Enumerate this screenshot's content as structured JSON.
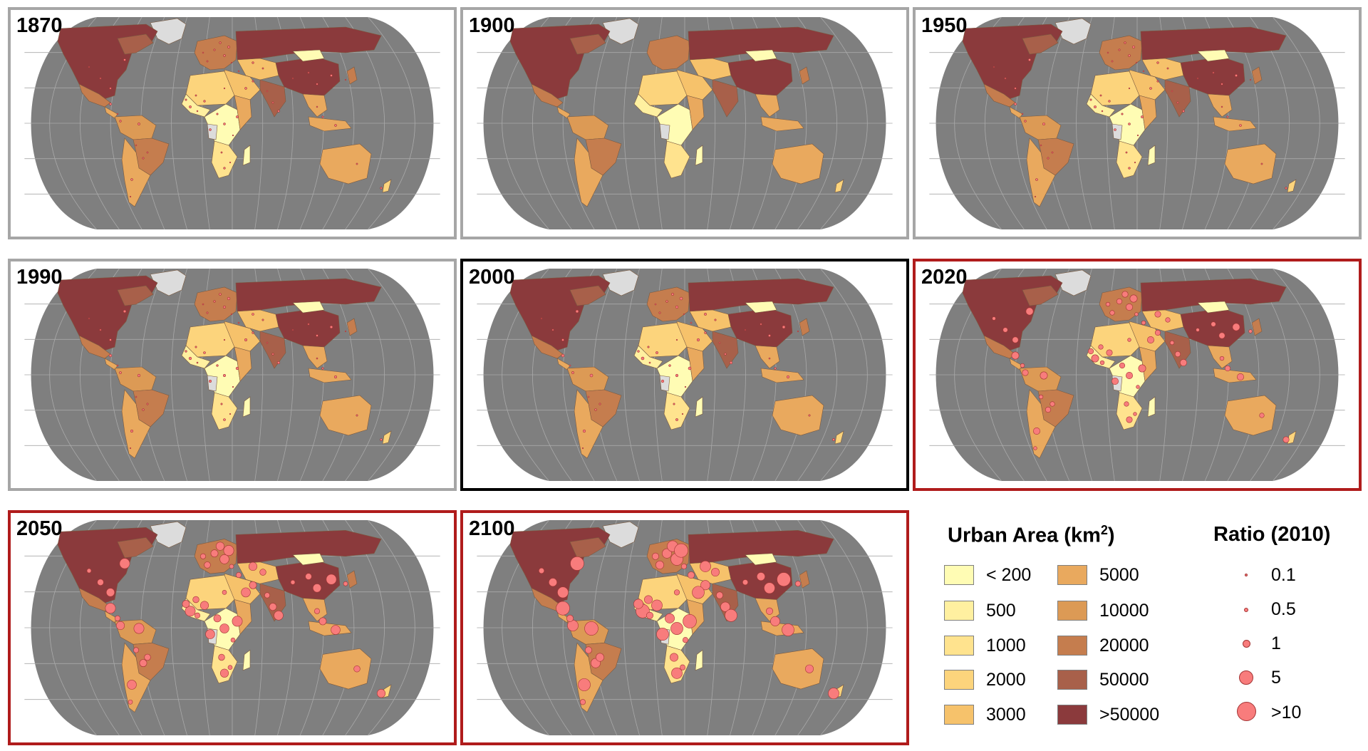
{
  "panels": [
    {
      "year": "1870",
      "frame": "gray",
      "circle_scale": 0.25
    },
    {
      "year": "1900",
      "frame": "gray",
      "circle_scale": 0.0
    },
    {
      "year": "1950",
      "frame": "gray",
      "circle_scale": 0.3
    },
    {
      "year": "1990",
      "frame": "gray",
      "circle_scale": 0.45
    },
    {
      "year": "2000",
      "frame": "black",
      "circle_scale": 0.55
    },
    {
      "year": "2020",
      "frame": "red",
      "circle_scale": 1.0
    },
    {
      "year": "2050",
      "frame": "red",
      "circle_scale": 1.5
    },
    {
      "year": "2100",
      "frame": "red",
      "circle_scale": 2.1
    }
  ],
  "legend": {
    "urban_area_title": "Urban Area (km",
    "urban_area_title_sup": "2",
    "urban_area_title_end": ")",
    "urban_classes": [
      {
        "label": "< 200",
        "color": "#fffcb4"
      },
      {
        "label": "500",
        "color": "#fff0a0"
      },
      {
        "label": "1000",
        "color": "#ffe38e"
      },
      {
        "label": "2000",
        "color": "#fcd47c"
      },
      {
        "label": "3000",
        "color": "#f6c26b"
      },
      {
        "label": "5000",
        "color": "#e9a95e"
      },
      {
        "label": "10000",
        "color": "#dc9a55"
      },
      {
        "label": "20000",
        "color": "#c57d4e"
      },
      {
        "label": "50000",
        "color": "#a8604a"
      },
      {
        "label": ">50000",
        "color": "#8b3a3c"
      }
    ],
    "ratio_title": "Ratio (2010)",
    "ratio_classes": [
      {
        "label": "0.1",
        "size": 4
      },
      {
        "label": "0.5",
        "size": 6
      },
      {
        "label": "1",
        "size": 11
      },
      {
        "label": "5",
        "size": 20
      },
      {
        "label": ">10",
        "size": 27
      }
    ]
  },
  "colors": {
    "ocean": "#7f7f7f",
    "graticule": "#a9a9a9",
    "no_data": "#dcdcdc",
    "ratio_fill": "#f87c7c",
    "ratio_stroke": "#a33434",
    "frame_gray": "#a6a6a6",
    "frame_black": "#000000",
    "frame_red": "#b01c1c"
  }
}
